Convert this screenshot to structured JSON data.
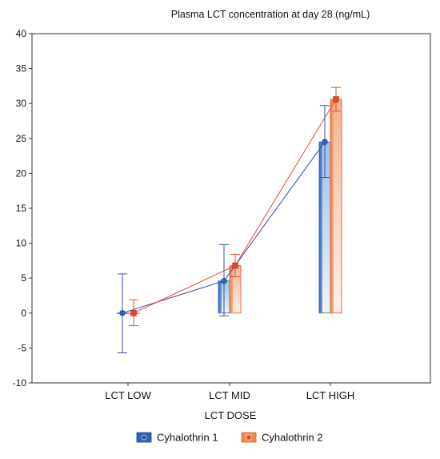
{
  "chart_data": {
    "type": "bar",
    "title": "Plasma LCT concentration at day 28 (ng/mL)",
    "xlabel": "LCT DOSE",
    "ylabel": "",
    "categories": [
      "LCT LOW",
      "LCT MID",
      "LCT HIGH"
    ],
    "ylim": [
      -10,
      40
    ],
    "yticks": [
      -10,
      -5,
      0,
      5,
      10,
      15,
      20,
      25,
      30,
      35,
      40
    ],
    "grid": false,
    "legend_position": "bottom",
    "series": [
      {
        "name": "Cyhalothrin 1",
        "color": "#2e62b8",
        "values": [
          0,
          4.6,
          24.5
        ],
        "error_low": [
          -5.7,
          -0.4,
          19.4
        ],
        "error_high": [
          5.6,
          9.8,
          29.7
        ]
      },
      {
        "name": "Cyhalothrin 2",
        "color": "#e8462a",
        "values": [
          0,
          6.8,
          30.6
        ],
        "error_low": [
          -1.8,
          5.2,
          28.9
        ],
        "error_high": [
          1.9,
          8.4,
          32.3
        ]
      }
    ]
  }
}
